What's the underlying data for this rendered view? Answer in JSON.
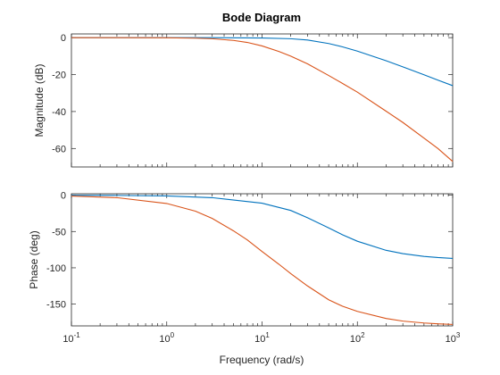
{
  "chart_data": {
    "type": "line",
    "title": "Bode Diagram",
    "xlabel": "Frequency (rad/s)",
    "xscale": "log",
    "xlim": [
      0.1,
      1000
    ],
    "xtick_labels": [
      {
        "base": "10",
        "exp": "-1"
      },
      {
        "base": "10",
        "exp": "0"
      },
      {
        "base": "10",
        "exp": "1"
      },
      {
        "base": "10",
        "exp": "2"
      },
      {
        "base": "10",
        "exp": "3"
      }
    ],
    "colors": {
      "series1": "#0072BD",
      "series2": "#D95319"
    },
    "grid": false,
    "panels": [
      {
        "ylabel": "Magnitude (dB)",
        "ylim": [
          -70,
          2
        ],
        "yticks": [
          0,
          -20,
          -40,
          -60
        ],
        "series": [
          {
            "x": [
              0.1,
              0.3,
              1,
              3,
              10,
              20,
              30,
              50,
              70,
              100,
              200,
              300,
              500,
              700,
              1000
            ],
            "values": [
              0,
              0,
              0,
              -0.02,
              -0.2,
              -0.6,
              -1.3,
              -3.2,
              -5,
              -7.3,
              -12.5,
              -15.8,
              -20.1,
              -23,
              -26
            ]
          },
          {
            "x": [
              0.1,
              0.3,
              1,
              2,
              3,
              5,
              7,
              10,
              15,
              20,
              30,
              50,
              70,
              100,
              200,
              300,
              500,
              700,
              1000
            ],
            "values": [
              0,
              0,
              -0.1,
              -0.3,
              -0.6,
              -1.5,
              -2.6,
              -4.5,
              -7.5,
              -10,
              -14.2,
              -20.5,
              -24.8,
              -29.5,
              -39.8,
              -45.9,
              -54.4,
              -60,
              -67
            ]
          }
        ]
      },
      {
        "ylabel": "Phase (deg)",
        "ylim": [
          -180,
          2
        ],
        "yticks": [
          0,
          -50,
          -100,
          -150
        ],
        "series": [
          {
            "x": [
              0.1,
              0.3,
              1,
              3,
              10,
              20,
              30,
              50,
              70,
              100,
              200,
              300,
              500,
              700,
              1000
            ],
            "values": [
              -0.1,
              -0.3,
              -1,
              -3.4,
              -11,
              -21,
              -31,
              -45,
              -54.5,
              -63.4,
              -75.9,
              -80.5,
              -84.3,
              -85.9,
              -87.1
            ]
          },
          {
            "x": [
              0.1,
              0.3,
              1,
              2,
              3,
              5,
              7,
              10,
              15,
              20,
              30,
              50,
              70,
              100,
              200,
              300,
              500,
              700,
              1000
            ],
            "values": [
              -1.1,
              -3.4,
              -11.4,
              -22,
              -32,
              -49,
              -61.5,
              -77.5,
              -95,
              -108,
              -125,
              -144,
              -153,
              -160,
              -169.8,
              -173.4,
              -176,
              -177.2,
              -178
            ]
          }
        ]
      }
    ]
  }
}
